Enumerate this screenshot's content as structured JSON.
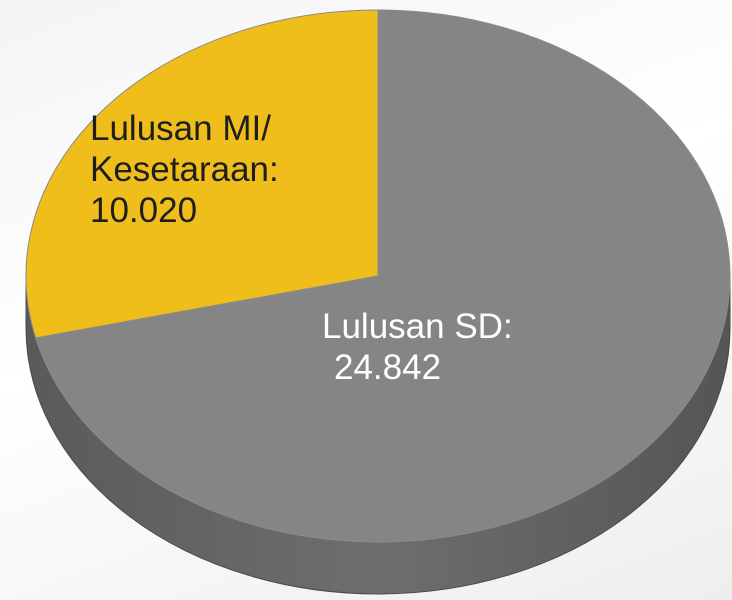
{
  "chart_data": {
    "type": "pie",
    "categories": [
      "Lulusan MI/ Kesetaraan:",
      "Lulusan SD:"
    ],
    "values": [
      10020,
      24842
    ],
    "value_labels": [
      "10.020",
      "24.842"
    ],
    "colors": [
      "#f0be1a",
      "#858585"
    ]
  }
}
